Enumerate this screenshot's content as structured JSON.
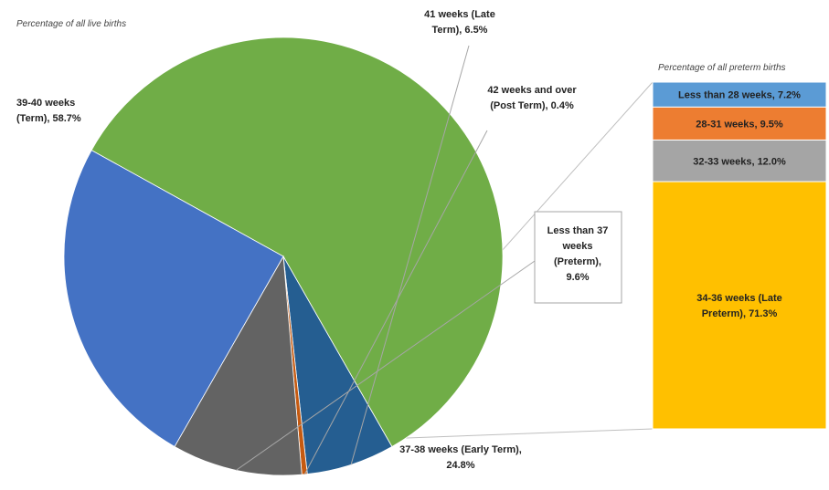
{
  "chart_data": [
    {
      "type": "pie",
      "caption": "Percentage of all live births",
      "slices": [
        {
          "label_lines": [
            "39-40 weeks",
            "(Term), 58.7%"
          ],
          "value": 58.7,
          "color": "#70ad47"
        },
        {
          "label_lines": [
            "41 weeks (Late",
            "Term), 6.5%"
          ],
          "value": 6.5,
          "color": "#255e91"
        },
        {
          "label_lines": [
            "42 weeks and over",
            "(Post Term), 0.4%"
          ],
          "value": 0.4,
          "color": "#c55a11"
        },
        {
          "label_lines": [
            "Less than 37",
            "weeks",
            "(Preterm),",
            "9.6%"
          ],
          "value": 9.6,
          "color": "#636363"
        },
        {
          "label_lines": [
            "37-38 weeks (Early Term),",
            "24.8%"
          ],
          "value": 24.8,
          "color": "#4472c4"
        }
      ]
    },
    {
      "type": "bar",
      "stacked": true,
      "caption": "Percentage of all preterm births",
      "segments": [
        {
          "label_lines": [
            "Less than 28 weeks, 7.2%"
          ],
          "value": 7.2,
          "color": "#5b9bd5"
        },
        {
          "label_lines": [
            "28-31 weeks, 9.5%"
          ],
          "value": 9.5,
          "color": "#ed7d31"
        },
        {
          "label_lines": [
            "32-33 weeks, 12.0%"
          ],
          "value": 12.0,
          "color": "#a5a5a5"
        },
        {
          "label_lines": [
            "34-36 weeks (Late",
            "Preterm), 71.3%"
          ],
          "value": 71.3,
          "color": "#ffc000"
        }
      ]
    }
  ]
}
